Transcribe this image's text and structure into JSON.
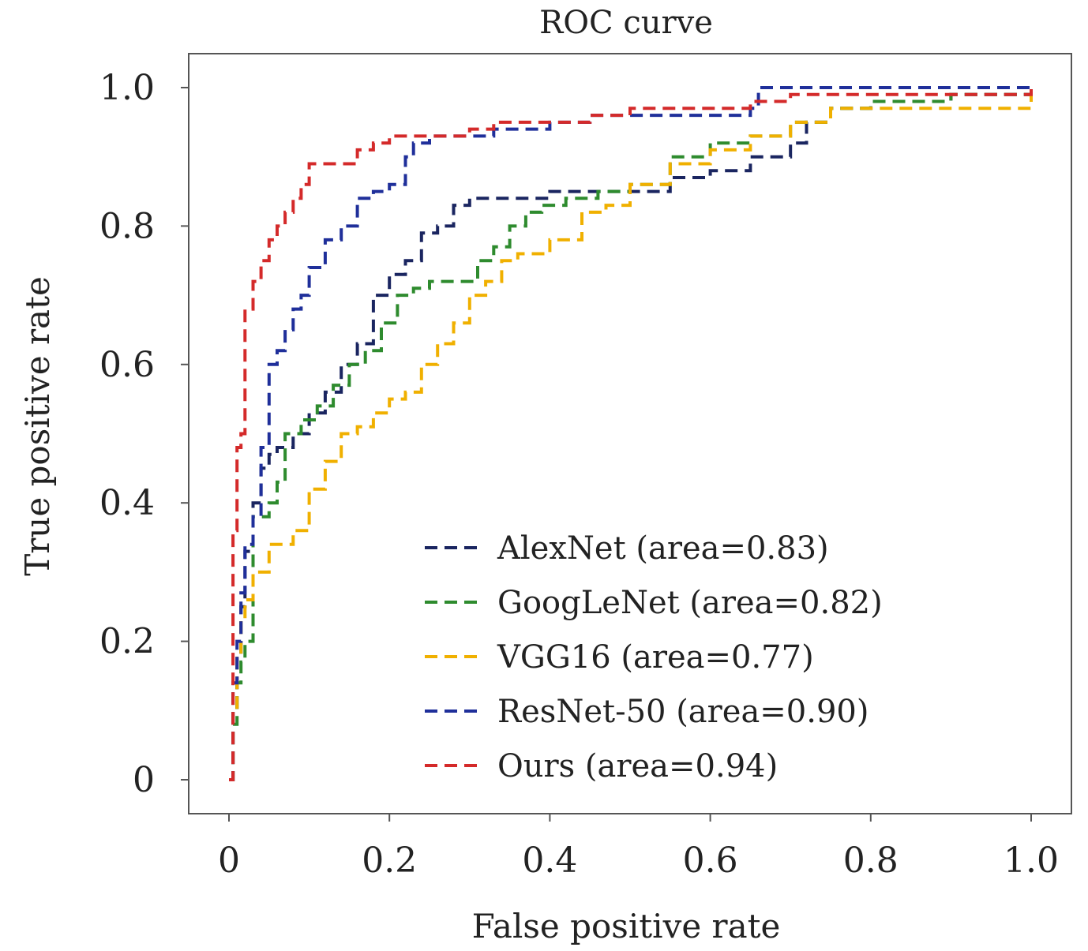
{
  "chart_data": {
    "type": "line",
    "title": "ROC curve",
    "xlabel": "False positive rate",
    "ylabel": "True positive rate",
    "xlim": [
      0,
      1
    ],
    "ylim": [
      0,
      1
    ],
    "xticks": [
      "0",
      "0.2",
      "0.4",
      "0.6",
      "0.8",
      "1.0"
    ],
    "yticks": [
      "0",
      "0.2",
      "0.4",
      "0.6",
      "0.8",
      "1.0"
    ],
    "grid": false,
    "legend_position": "lower-right",
    "series": [
      {
        "name": "AlexNet (area=0.83)",
        "color": "#1a2560",
        "x": [
          0,
          0.005,
          0.01,
          0.015,
          0.02,
          0.03,
          0.04,
          0.05,
          0.06,
          0.08,
          0.1,
          0.12,
          0.14,
          0.16,
          0.18,
          0.2,
          0.22,
          0.24,
          0.26,
          0.28,
          0.3,
          0.35,
          0.4,
          0.45,
          0.5,
          0.55,
          0.6,
          0.65,
          0.7,
          0.72,
          0.75,
          0.8,
          0.9,
          1.0
        ],
        "y": [
          0,
          0.1,
          0.18,
          0.25,
          0.33,
          0.4,
          0.45,
          0.47,
          0.48,
          0.5,
          0.53,
          0.56,
          0.6,
          0.63,
          0.7,
          0.73,
          0.75,
          0.79,
          0.8,
          0.83,
          0.84,
          0.84,
          0.85,
          0.85,
          0.85,
          0.87,
          0.88,
          0.9,
          0.92,
          0.95,
          0.97,
          0.98,
          0.99,
          1.0
        ]
      },
      {
        "name": "GoogLeNet (area=0.82)",
        "color": "#2e8b2e",
        "x": [
          0,
          0.005,
          0.01,
          0.015,
          0.02,
          0.03,
          0.05,
          0.06,
          0.07,
          0.09,
          0.11,
          0.13,
          0.15,
          0.17,
          0.19,
          0.21,
          0.23,
          0.25,
          0.27,
          0.29,
          0.31,
          0.33,
          0.35,
          0.37,
          0.39,
          0.42,
          0.46,
          0.5,
          0.55,
          0.6,
          0.65,
          0.7,
          0.75,
          0.8,
          0.9,
          1.0
        ],
        "y": [
          0,
          0.08,
          0.14,
          0.17,
          0.2,
          0.38,
          0.4,
          0.43,
          0.5,
          0.52,
          0.54,
          0.57,
          0.6,
          0.62,
          0.66,
          0.7,
          0.71,
          0.72,
          0.72,
          0.72,
          0.75,
          0.77,
          0.8,
          0.82,
          0.83,
          0.84,
          0.85,
          0.86,
          0.9,
          0.92,
          0.93,
          0.95,
          0.97,
          0.98,
          0.99,
          1.0
        ]
      },
      {
        "name": "VGG16 (area=0.77)",
        "color": "#f0b000",
        "x": [
          0,
          0.005,
          0.01,
          0.015,
          0.02,
          0.03,
          0.05,
          0.08,
          0.1,
          0.12,
          0.14,
          0.16,
          0.18,
          0.2,
          0.22,
          0.24,
          0.26,
          0.28,
          0.3,
          0.32,
          0.34,
          0.36,
          0.4,
          0.44,
          0.47,
          0.5,
          0.55,
          0.6,
          0.65,
          0.7,
          0.75,
          0.8,
          0.9,
          0.96,
          1.0
        ],
        "y": [
          0,
          0.1,
          0.18,
          0.23,
          0.26,
          0.3,
          0.34,
          0.36,
          0.42,
          0.46,
          0.5,
          0.51,
          0.53,
          0.55,
          0.56,
          0.6,
          0.63,
          0.66,
          0.7,
          0.72,
          0.75,
          0.76,
          0.78,
          0.82,
          0.83,
          0.86,
          0.89,
          0.91,
          0.93,
          0.95,
          0.97,
          0.97,
          0.97,
          0.97,
          1.0
        ]
      },
      {
        "name": "ResNet-50 (area=0.90)",
        "color": "#1f2f9a",
        "x": [
          0,
          0.005,
          0.01,
          0.015,
          0.02,
          0.03,
          0.04,
          0.05,
          0.06,
          0.07,
          0.08,
          0.09,
          0.1,
          0.12,
          0.14,
          0.16,
          0.18,
          0.2,
          0.22,
          0.23,
          0.25,
          0.3,
          0.33,
          0.4,
          0.45,
          0.5,
          0.55,
          0.6,
          0.65,
          0.66,
          0.7,
          0.8,
          1.0
        ],
        "y": [
          0,
          0.14,
          0.2,
          0.27,
          0.34,
          0.38,
          0.48,
          0.6,
          0.62,
          0.65,
          0.68,
          0.7,
          0.74,
          0.78,
          0.8,
          0.84,
          0.85,
          0.86,
          0.9,
          0.92,
          0.93,
          0.93,
          0.94,
          0.95,
          0.96,
          0.96,
          0.96,
          0.96,
          0.97,
          1.0,
          1.0,
          1.0,
          1.0
        ]
      },
      {
        "name": "Ours (area=0.94)",
        "color": "#d42a2a",
        "x": [
          0,
          0.005,
          0.01,
          0.015,
          0.02,
          0.03,
          0.04,
          0.05,
          0.06,
          0.07,
          0.08,
          0.09,
          0.1,
          0.12,
          0.14,
          0.16,
          0.18,
          0.2,
          0.25,
          0.3,
          0.33,
          0.4,
          0.45,
          0.5,
          0.6,
          0.63,
          0.65,
          0.7,
          0.8,
          0.9,
          1.0
        ],
        "y": [
          0,
          0.36,
          0.48,
          0.5,
          0.68,
          0.72,
          0.75,
          0.78,
          0.8,
          0.82,
          0.84,
          0.86,
          0.89,
          0.89,
          0.89,
          0.91,
          0.92,
          0.93,
          0.93,
          0.94,
          0.95,
          0.95,
          0.96,
          0.97,
          0.97,
          0.97,
          0.98,
          0.99,
          0.99,
          0.99,
          1.0
        ]
      }
    ]
  }
}
